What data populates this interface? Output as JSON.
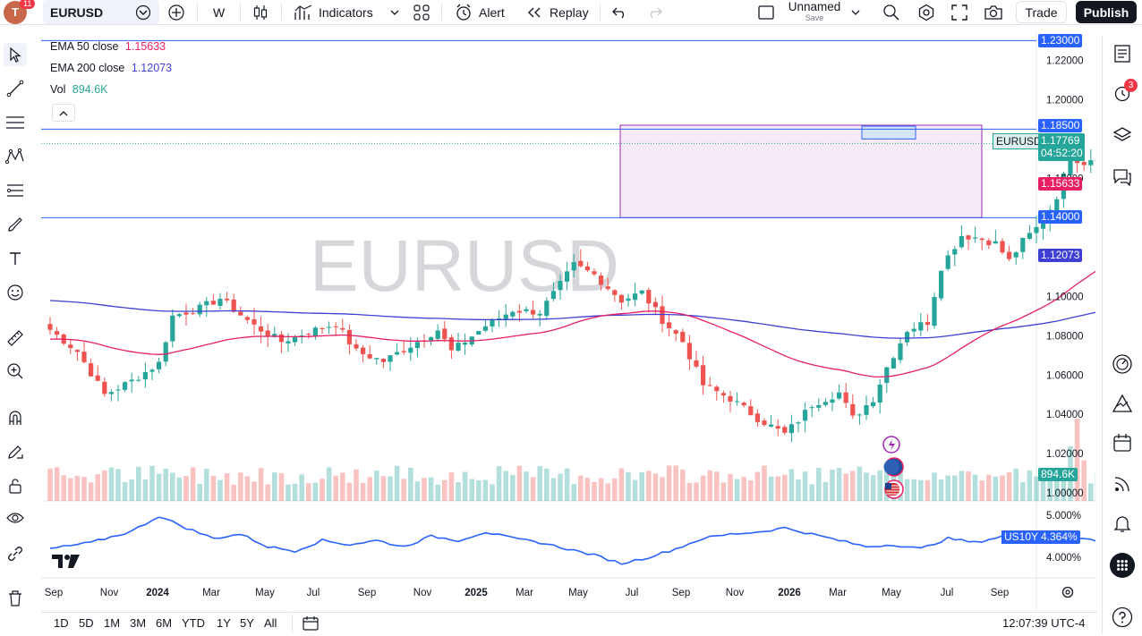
{
  "toolbar": {
    "avatar_letter": "T",
    "avatar_badge": "11",
    "symbol": "EURUSD",
    "interval": "W",
    "indicators_label": "Indicators",
    "alert_label": "Alert",
    "replay_label": "Replay",
    "layout_name": "Unnamed",
    "layout_sub": "Save",
    "trade_label": "Trade",
    "publish_label": "Publish"
  },
  "legend": {
    "ema50_name": "EMA 50 close",
    "ema50_value": "1.15633",
    "ema200_name": "EMA 200 close",
    "ema200_value": "1.12073",
    "vol_name": "Vol",
    "vol_value": "894.6K"
  },
  "watermark": "EURUSD",
  "price_axis": {
    "ticks": [
      "1.22000",
      "1.20000",
      "1.16000",
      "1.10000",
      "1.08000",
      "1.06000",
      "1.04000",
      "1.02000",
      "1.00000"
    ],
    "tags": {
      "top_line": "1.23000",
      "resistance": "1.18500",
      "symbol_badge": "EURUSD",
      "last_price": "1.17769",
      "countdown": "04:52:20",
      "ema50": "1.15633",
      "support": "1.14000",
      "ema200": "1.12073",
      "volume": "894.6K"
    }
  },
  "sub_pane": {
    "symbol": "US10Y",
    "value": "4.364%",
    "ticks": [
      "5.000%",
      "4.000%"
    ]
  },
  "time_axis": [
    "Sep",
    "Nov",
    "2024",
    "Mar",
    "May",
    "Jul",
    "Sep",
    "Nov",
    "2025",
    "Mar",
    "May",
    "Jul",
    "Sep",
    "Nov",
    "2026",
    "Mar",
    "May",
    "Jul",
    "Sep"
  ],
  "bottombar": {
    "ranges": [
      "1D",
      "5D",
      "1M",
      "3M",
      "6M",
      "YTD",
      "1Y",
      "5Y",
      "All"
    ],
    "clock": "12:07:39 UTC-4"
  },
  "right_sidebar": {
    "alerts_badge": "3"
  },
  "colors": {
    "up": "#26a69a",
    "down": "#ef5350",
    "ema50": "#e91e63",
    "ema200": "#3f3fd4",
    "range_box_fill": "#f3e5f5",
    "range_box_border": "#9c27b0",
    "level_line": "#2962ff",
    "us10y": "#2962ff"
  },
  "chart_data": {
    "type": "candlestick",
    "symbol": "EURUSD",
    "interval": "W",
    "ylim": [
      0.996,
      1.232
    ],
    "levels": [
      1.23,
      1.185,
      1.14
    ],
    "range_box": {
      "from": "Jun 2025",
      "to": "Aug 2026",
      "low": 1.14,
      "high": 1.187
    },
    "last_price": 1.17769,
    "ema50_last": 1.15633,
    "ema200_last": 1.12073,
    "us10y_last": 4.364,
    "us10y_ylim": [
      3.55,
      5.3
    ],
    "x_start": "Aug 2023",
    "x_end": "Oct 2026",
    "last_candle": "May 2026"
  }
}
